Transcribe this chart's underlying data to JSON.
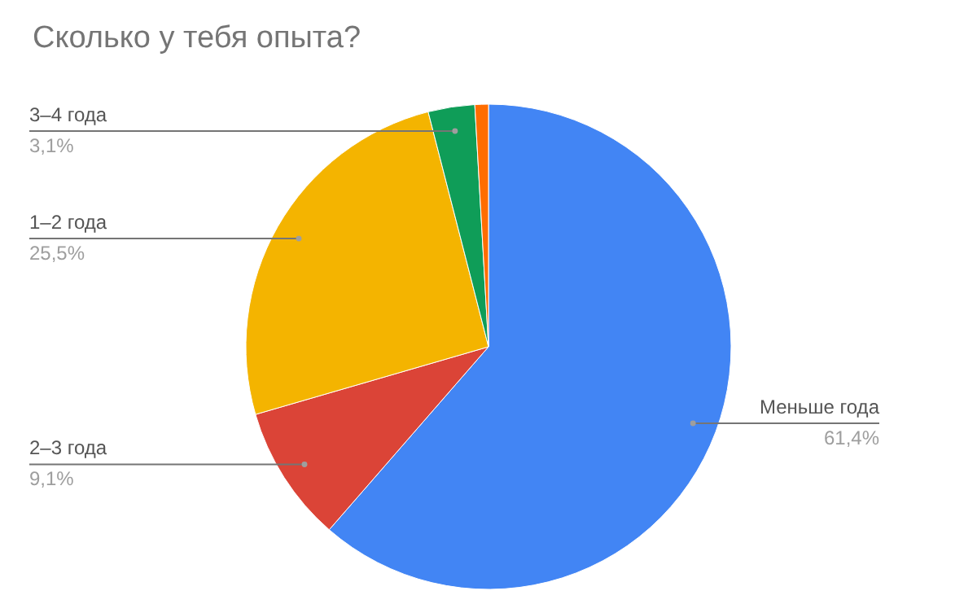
{
  "chart_data": {
    "type": "pie",
    "title": "Сколько у тебя опыта?",
    "categories": [
      "Меньше года",
      "2–3 года",
      "1–2 года",
      "3–4 года",
      null
    ],
    "values": [
      61.4,
      9.1,
      25.5,
      3.1,
      0.9
    ],
    "colors": [
      "#4285f4",
      "#db4437",
      "#f4b400",
      "#0f9d58",
      "#ff6d00"
    ],
    "value_labels": [
      "61,4%",
      "9,1%",
      "25,5%",
      "3,1%",
      null
    ]
  }
}
